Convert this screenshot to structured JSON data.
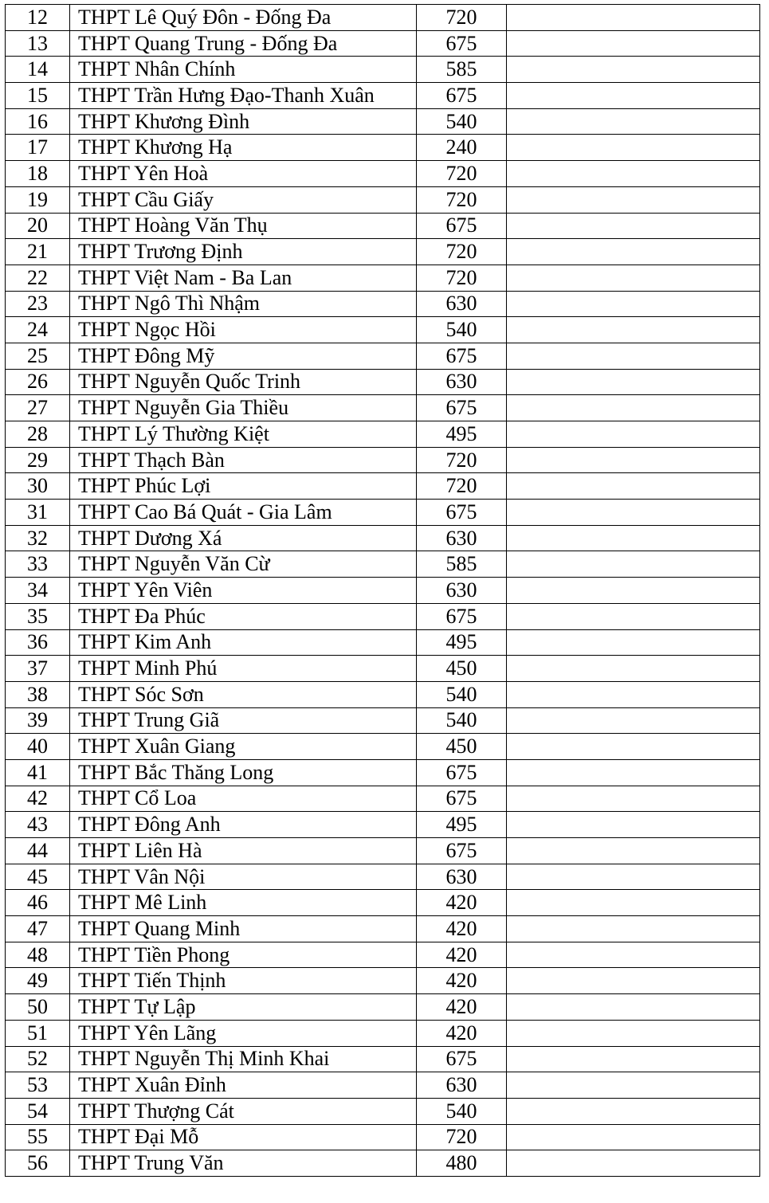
{
  "table": {
    "rows": [
      {
        "no": "12",
        "school": "THPT Lê Quý Đôn - Đống Đa",
        "value": "720"
      },
      {
        "no": "13",
        "school": "THPT Quang Trung - Đống Đa",
        "value": "675"
      },
      {
        "no": "14",
        "school": "THPT Nhân Chính",
        "value": "585"
      },
      {
        "no": "15",
        "school": "THPT Trần Hưng Đạo-Thanh Xuân",
        "value": "675"
      },
      {
        "no": "16",
        "school": "THPT Khương Đình",
        "value": "540"
      },
      {
        "no": "17",
        "school": "THPT Khương Hạ",
        "value": "240"
      },
      {
        "no": "18",
        "school": "THPT Yên Hoà",
        "value": "720"
      },
      {
        "no": "19",
        "school": "THPT Cầu Giấy",
        "value": "720"
      },
      {
        "no": "20",
        "school": "THPT Hoàng Văn Thụ",
        "value": "675"
      },
      {
        "no": "21",
        "school": "THPT Trương Định",
        "value": "720"
      },
      {
        "no": "22",
        "school": "THPT Việt Nam - Ba Lan",
        "value": "720"
      },
      {
        "no": "23",
        "school": "THPT Ngô Thì Nhậm",
        "value": "630"
      },
      {
        "no": "24",
        "school": "THPT Ngọc Hồi",
        "value": "540"
      },
      {
        "no": "25",
        "school": "THPT Đông Mỹ",
        "value": "675"
      },
      {
        "no": "26",
        "school": "THPT Nguyễn Quốc Trinh",
        "value": "630"
      },
      {
        "no": "27",
        "school": "THPT Nguyễn Gia Thiều",
        "value": "675"
      },
      {
        "no": "28",
        "school": "THPT Lý Thường Kiệt",
        "value": "495"
      },
      {
        "no": "29",
        "school": "THPT Thạch Bàn",
        "value": "720"
      },
      {
        "no": "30",
        "school": "THPT Phúc Lợi",
        "value": "720"
      },
      {
        "no": "31",
        "school": "THPT Cao Bá Quát - Gia Lâm",
        "value": "675"
      },
      {
        "no": "32",
        "school": "THPT Dương Xá",
        "value": "630"
      },
      {
        "no": "33",
        "school": "THPT Nguyễn Văn Cừ",
        "value": "585"
      },
      {
        "no": "34",
        "school": "THPT Yên Viên",
        "value": "630"
      },
      {
        "no": "35",
        "school": "THPT Đa Phúc",
        "value": "675"
      },
      {
        "no": "36",
        "school": "THPT Kim Anh",
        "value": "495"
      },
      {
        "no": "37",
        "school": "THPT Minh Phú",
        "value": "450"
      },
      {
        "no": "38",
        "school": "THPT Sóc Sơn",
        "value": "540"
      },
      {
        "no": "39",
        "school": "THPT Trung Giã",
        "value": "540"
      },
      {
        "no": "40",
        "school": "THPT Xuân Giang",
        "value": "450"
      },
      {
        "no": "41",
        "school": "THPT Bắc Thăng Long",
        "value": "675"
      },
      {
        "no": "42",
        "school": "THPT Cổ Loa",
        "value": "675"
      },
      {
        "no": "43",
        "school": "THPT Đông Anh",
        "value": "495"
      },
      {
        "no": "44",
        "school": "THPT Liên Hà",
        "value": "675"
      },
      {
        "no": "45",
        "school": "THPT Vân Nội",
        "value": "630"
      },
      {
        "no": "46",
        "school": "THPT Mê Linh",
        "value": "420"
      },
      {
        "no": "47",
        "school": "THPT Quang Minh",
        "value": "420"
      },
      {
        "no": "48",
        "school": "THPT Tiền Phong",
        "value": "420"
      },
      {
        "no": "49",
        "school": "THPT Tiến Thịnh",
        "value": "420"
      },
      {
        "no": "50",
        "school": "THPT Tự Lập",
        "value": "420"
      },
      {
        "no": "51",
        "school": "THPT Yên Lãng",
        "value": "420"
      },
      {
        "no": "52",
        "school": "THPT Nguyễn Thị Minh Khai",
        "value": "675"
      },
      {
        "no": "53",
        "school": "THPT Xuân Đỉnh",
        "value": "630"
      },
      {
        "no": "54",
        "school": "THPT Thượng Cát",
        "value": "540"
      },
      {
        "no": "55",
        "school": "THPT Đại Mỗ",
        "value": "720"
      },
      {
        "no": "56",
        "school": "THPT Trung Văn",
        "value": "480"
      }
    ]
  }
}
